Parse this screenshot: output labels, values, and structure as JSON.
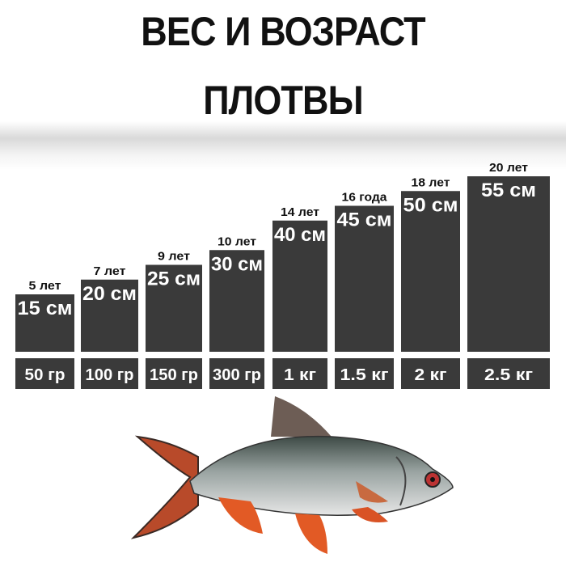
{
  "title_line1": "ВЕС И ВОЗРАСТ",
  "title_line2": "ПЛОТВЫ",
  "chart_data": {
    "type": "bar",
    "categories": [
      "5 лет",
      "7 лет",
      "9 лет",
      "10 лет",
      "14 лет",
      "16 года",
      "18 лет",
      "20 лет"
    ],
    "values": [
      15,
      20,
      25,
      30,
      40,
      45,
      50,
      55
    ],
    "value_labels": [
      "15 см",
      "20 см",
      "25 см",
      "30 см",
      "40 см",
      "45 см",
      "50 см",
      "55 см"
    ],
    "weights": [
      "50 гр",
      "100 гр",
      "150 гр",
      "300 гр",
      "1 кг",
      "1.5 кг",
      "2 кг",
      "2.5 кг"
    ],
    "title": "ВЕС И ВОЗРАСТ ПЛОТВЫ",
    "xlabel": "",
    "ylabel": "",
    "grid": false,
    "colors": {
      "bar": "#3a3a3a",
      "label": "#ffffff",
      "age_label": "#111111"
    }
  }
}
